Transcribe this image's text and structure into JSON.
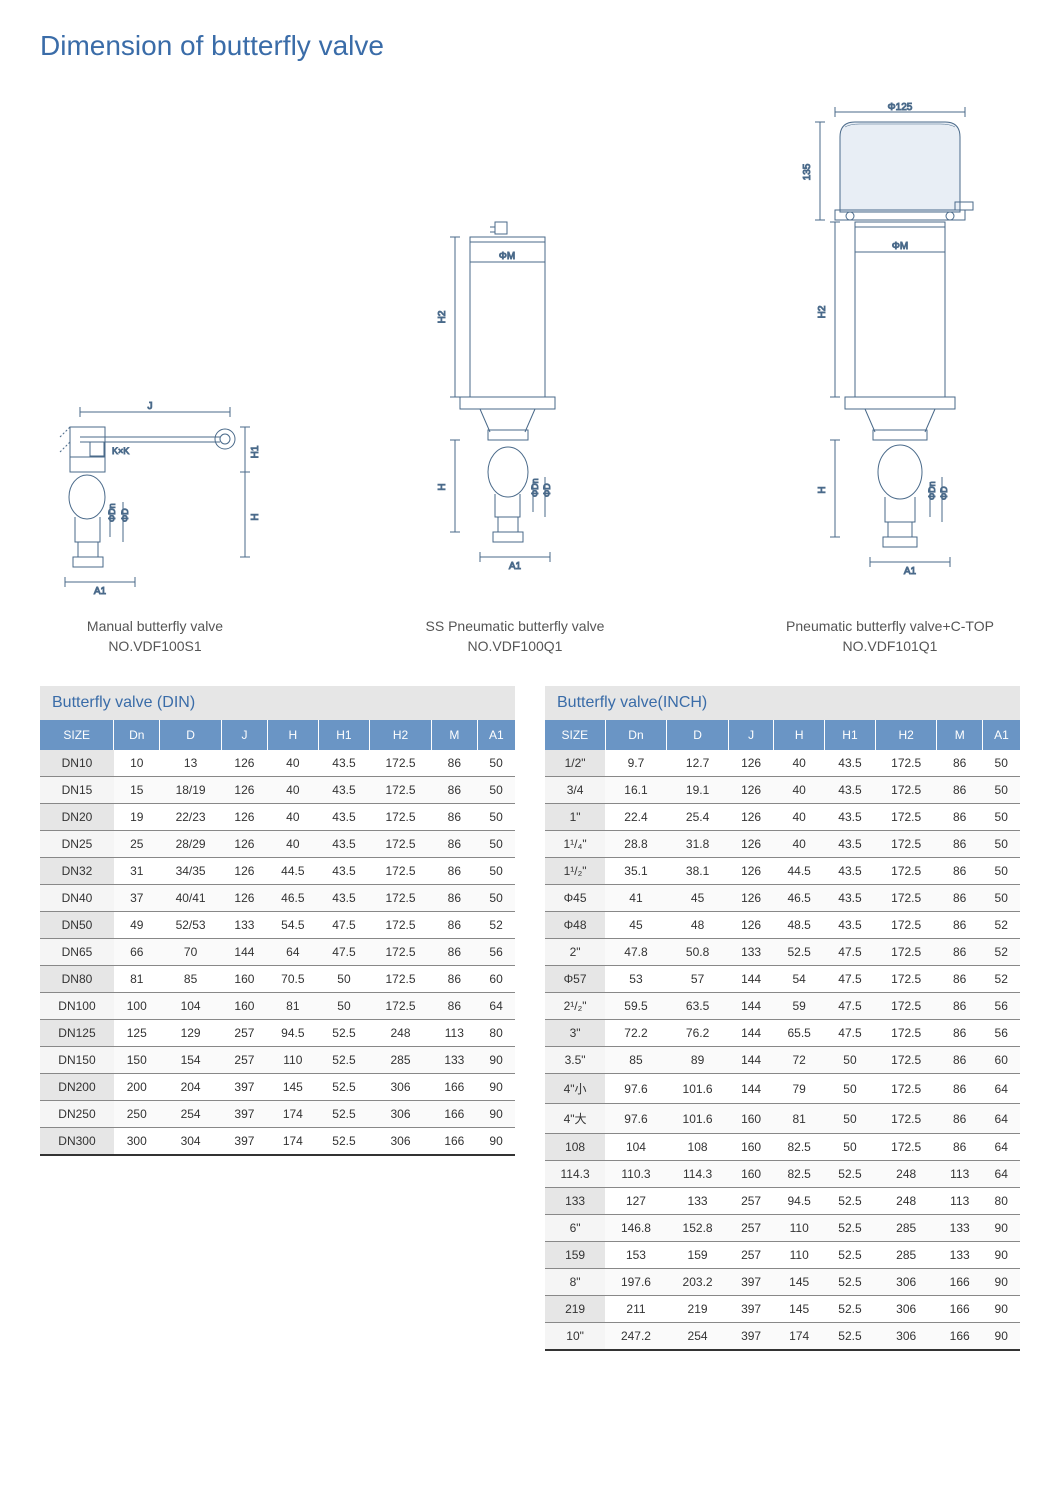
{
  "title": "Dimension of butterfly valve",
  "diagrams": [
    {
      "caption1": "Manual butterfly valve",
      "caption2": "NO.VDF100S1",
      "labels": {
        "J": "J",
        "H1": "H1",
        "KxK": "K×K",
        "H": "H",
        "Dn": "ΦDn",
        "D": "ΦD",
        "A1": "A1"
      }
    },
    {
      "caption1": "SS Pneumatic butterfly valve",
      "caption2": "NO.VDF100Q1",
      "labels": {
        "M": "ΦM",
        "H2": "H2",
        "H": "H",
        "Dn": "ΦDn",
        "D": "ΦD",
        "A1": "A1"
      }
    },
    {
      "caption1": "Pneumatic butterfly valve+C-TOP",
      "caption2": "NO.VDF101Q1",
      "labels": {
        "top": "Φ125",
        "side": "135",
        "M": "ΦM",
        "H2": "H2",
        "H": "H",
        "Dn": "ΦDn",
        "D": "ΦD",
        "A1": "A1"
      }
    }
  ],
  "table_din": {
    "title": "Butterfly valve (DIN)",
    "columns": [
      "SIZE",
      "Dn",
      "D",
      "J",
      "H",
      "H1",
      "H2",
      "M",
      "A1"
    ],
    "rows": [
      [
        "DN10",
        "10",
        "13",
        "126",
        "40",
        "43.5",
        "172.5",
        "86",
        "50"
      ],
      [
        "DN15",
        "15",
        "18/19",
        "126",
        "40",
        "43.5",
        "172.5",
        "86",
        "50"
      ],
      [
        "DN20",
        "19",
        "22/23",
        "126",
        "40",
        "43.5",
        "172.5",
        "86",
        "50"
      ],
      [
        "DN25",
        "25",
        "28/29",
        "126",
        "40",
        "43.5",
        "172.5",
        "86",
        "50"
      ],
      [
        "DN32",
        "31",
        "34/35",
        "126",
        "44.5",
        "43.5",
        "172.5",
        "86",
        "50"
      ],
      [
        "DN40",
        "37",
        "40/41",
        "126",
        "46.5",
        "43.5",
        "172.5",
        "86",
        "50"
      ],
      [
        "DN50",
        "49",
        "52/53",
        "133",
        "54.5",
        "47.5",
        "172.5",
        "86",
        "52"
      ],
      [
        "DN65",
        "66",
        "70",
        "144",
        "64",
        "47.5",
        "172.5",
        "86",
        "56"
      ],
      [
        "DN80",
        "81",
        "85",
        "160",
        "70.5",
        "50",
        "172.5",
        "86",
        "60"
      ],
      [
        "DN100",
        "100",
        "104",
        "160",
        "81",
        "50",
        "172.5",
        "86",
        "64"
      ],
      [
        "DN125",
        "125",
        "129",
        "257",
        "94.5",
        "52.5",
        "248",
        "113",
        "80"
      ],
      [
        "DN150",
        "150",
        "154",
        "257",
        "110",
        "52.5",
        "285",
        "133",
        "90"
      ],
      [
        "DN200",
        "200",
        "204",
        "397",
        "145",
        "52.5",
        "306",
        "166",
        "90"
      ],
      [
        "DN250",
        "250",
        "254",
        "397",
        "174",
        "52.5",
        "306",
        "166",
        "90"
      ],
      [
        "DN300",
        "300",
        "304",
        "397",
        "174",
        "52.5",
        "306",
        "166",
        "90"
      ]
    ]
  },
  "table_inch": {
    "title": "Butterfly valve(INCH)",
    "columns": [
      "SIZE",
      "Dn",
      "D",
      "J",
      "H",
      "H1",
      "H2",
      "M",
      "A1"
    ],
    "rows": [
      [
        "1/2\"",
        "9.7",
        "12.7",
        "126",
        "40",
        "43.5",
        "172.5",
        "86",
        "50"
      ],
      [
        "3/4",
        "16.1",
        "19.1",
        "126",
        "40",
        "43.5",
        "172.5",
        "86",
        "50"
      ],
      [
        "1\"",
        "22.4",
        "25.4",
        "126",
        "40",
        "43.5",
        "172.5",
        "86",
        "50"
      ],
      [
        "1¹/₄\"",
        "28.8",
        "31.8",
        "126",
        "40",
        "43.5",
        "172.5",
        "86",
        "50"
      ],
      [
        "1¹/₂\"",
        "35.1",
        "38.1",
        "126",
        "44.5",
        "43.5",
        "172.5",
        "86",
        "50"
      ],
      [
        "Φ45",
        "41",
        "45",
        "126",
        "46.5",
        "43.5",
        "172.5",
        "86",
        "50"
      ],
      [
        "Φ48",
        "45",
        "48",
        "126",
        "48.5",
        "43.5",
        "172.5",
        "86",
        "52"
      ],
      [
        "2\"",
        "47.8",
        "50.8",
        "133",
        "52.5",
        "47.5",
        "172.5",
        "86",
        "52"
      ],
      [
        "Φ57",
        "53",
        "57",
        "144",
        "54",
        "47.5",
        "172.5",
        "86",
        "52"
      ],
      [
        "2¹/₂\"",
        "59.5",
        "63.5",
        "144",
        "59",
        "47.5",
        "172.5",
        "86",
        "56"
      ],
      [
        "3\"",
        "72.2",
        "76.2",
        "144",
        "65.5",
        "47.5",
        "172.5",
        "86",
        "56"
      ],
      [
        "3.5\"",
        "85",
        "89",
        "144",
        "72",
        "50",
        "172.5",
        "86",
        "60"
      ],
      [
        "4\"小",
        "97.6",
        "101.6",
        "144",
        "79",
        "50",
        "172.5",
        "86",
        "64"
      ],
      [
        "4\"大",
        "97.6",
        "101.6",
        "160",
        "81",
        "50",
        "172.5",
        "86",
        "64"
      ],
      [
        "108",
        "104",
        "108",
        "160",
        "82.5",
        "50",
        "172.5",
        "86",
        "64"
      ],
      [
        "114.3",
        "110.3",
        "114.3",
        "160",
        "82.5",
        "52.5",
        "248",
        "113",
        "64"
      ],
      [
        "133",
        "127",
        "133",
        "257",
        "94.5",
        "52.5",
        "248",
        "113",
        "80"
      ],
      [
        "6\"",
        "146.8",
        "152.8",
        "257",
        "110",
        "52.5",
        "285",
        "133",
        "90"
      ],
      [
        "159",
        "153",
        "159",
        "257",
        "110",
        "52.5",
        "285",
        "133",
        "90"
      ],
      [
        "8\"",
        "197.6",
        "203.2",
        "397",
        "145",
        "52.5",
        "306",
        "166",
        "90"
      ],
      [
        "219",
        "211",
        "219",
        "397",
        "145",
        "52.5",
        "306",
        "166",
        "90"
      ],
      [
        "10\"",
        "247.2",
        "254",
        "397",
        "174",
        "52.5",
        "306",
        "166",
        "90"
      ]
    ]
  },
  "style": {
    "accent": "#3a6ca8",
    "header_bg": "#6a95c5",
    "odd_cell_bg": "#e6e6e6",
    "diagram_stroke": "#4a6a8a"
  }
}
